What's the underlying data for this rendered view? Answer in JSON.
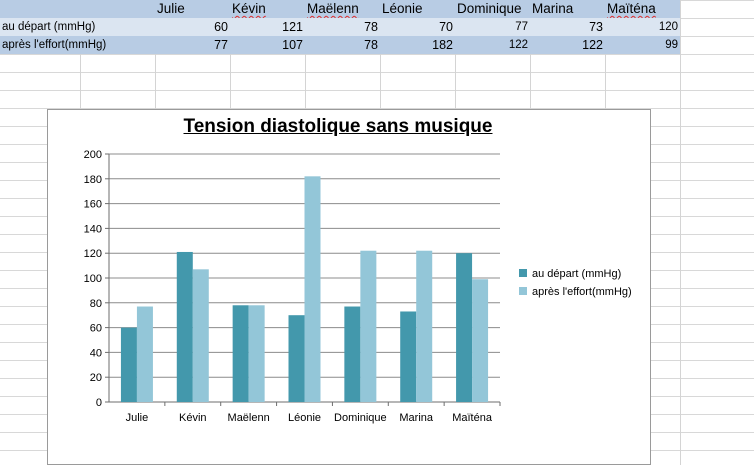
{
  "sheet": {
    "columns": [
      "Julie",
      "Kévin",
      "Maëlenn",
      "Léonie",
      "Dominique",
      "Marina",
      "Maïténa"
    ],
    "rows": [
      {
        "label": "au départ (mmHg)",
        "values": [
          "60",
          "121",
          "78",
          "70",
          "77",
          "73",
          "120"
        ]
      },
      {
        "label": "après l'effort(mmHg)",
        "values": [
          "77",
          "107",
          "78",
          "182",
          "122",
          "122",
          "99"
        ]
      }
    ]
  },
  "chart_data": {
    "type": "bar",
    "title": "Tension diastolique sans musique",
    "categories": [
      "Julie",
      "Kévin",
      "Maëlenn",
      "Léonie",
      "Dominique",
      "Marina",
      "Maïténa"
    ],
    "series": [
      {
        "name": "au départ (mmHg)",
        "values": [
          60,
          121,
          78,
          70,
          77,
          73,
          120
        ],
        "color": "#4398ac"
      },
      {
        "name": "après l'effort(mmHg)",
        "values": [
          77,
          107,
          78,
          182,
          122,
          122,
          99
        ],
        "color": "#93c6d8"
      }
    ],
    "ylim": [
      0,
      200
    ],
    "yticks": [
      "0",
      "20",
      "40",
      "60",
      "80",
      "100",
      "120",
      "140",
      "160",
      "180",
      "200"
    ],
    "grid": true,
    "legend_position": "right"
  }
}
